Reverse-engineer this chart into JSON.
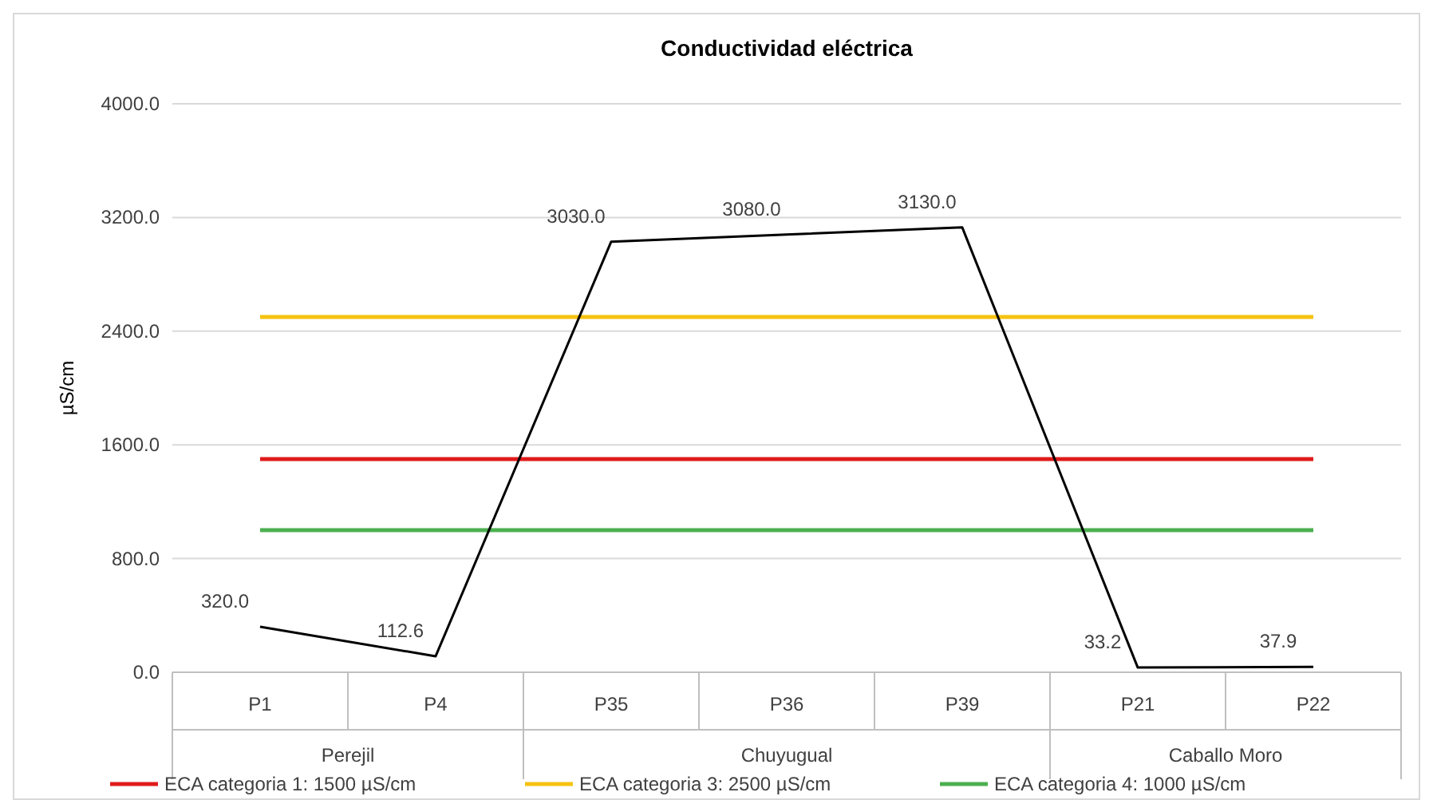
{
  "chart_data": {
    "type": "line",
    "title": "Conductividad eléctrica",
    "ylabel": "µS/cm",
    "categories": [
      "P1",
      "P4",
      "P35",
      "P36",
      "P39",
      "P21",
      "P22"
    ],
    "series": [
      {
        "color": "#000000",
        "values": [
          320,
          112.6,
          3030,
          3080,
          3130,
          33.2,
          37.9
        ],
        "value_labels": [
          "320.0",
          "112.6",
          "3030.0",
          "3080.0",
          "3130.0",
          "33.2",
          "37.9"
        ]
      }
    ],
    "ylim": [
      0,
      4000
    ],
    "yticks": [
      {
        "value": 0,
        "label": "0.0"
      },
      {
        "value": 800,
        "label": "800.0"
      },
      {
        "value": 1600,
        "label": "1600.0"
      },
      {
        "value": 2400,
        "label": "2400.0"
      },
      {
        "value": 3200,
        "label": "3200.0"
      },
      {
        "value": 4000,
        "label": "4000.0"
      }
    ],
    "grid": "y",
    "legend": "bottom",
    "marker": "none",
    "line_style": "solid",
    "ref_lines": [
      {
        "axis": "y",
        "value": 1500,
        "label": "ECA categoria 1: 1500 µS/cm",
        "color": "#e01b1b"
      },
      {
        "axis": "y",
        "value": 2500,
        "label": "ECA categoria 3: 2500 µS/cm",
        "color": "#f5c211"
      },
      {
        "axis": "y",
        "value": 1000,
        "label": "ECA categoria 4: 1000 µS/cm",
        "color": "#4caf50"
      }
    ],
    "annotations": [
      "Perejil",
      "Chuyugual",
      "Caballo Moro"
    ]
  }
}
